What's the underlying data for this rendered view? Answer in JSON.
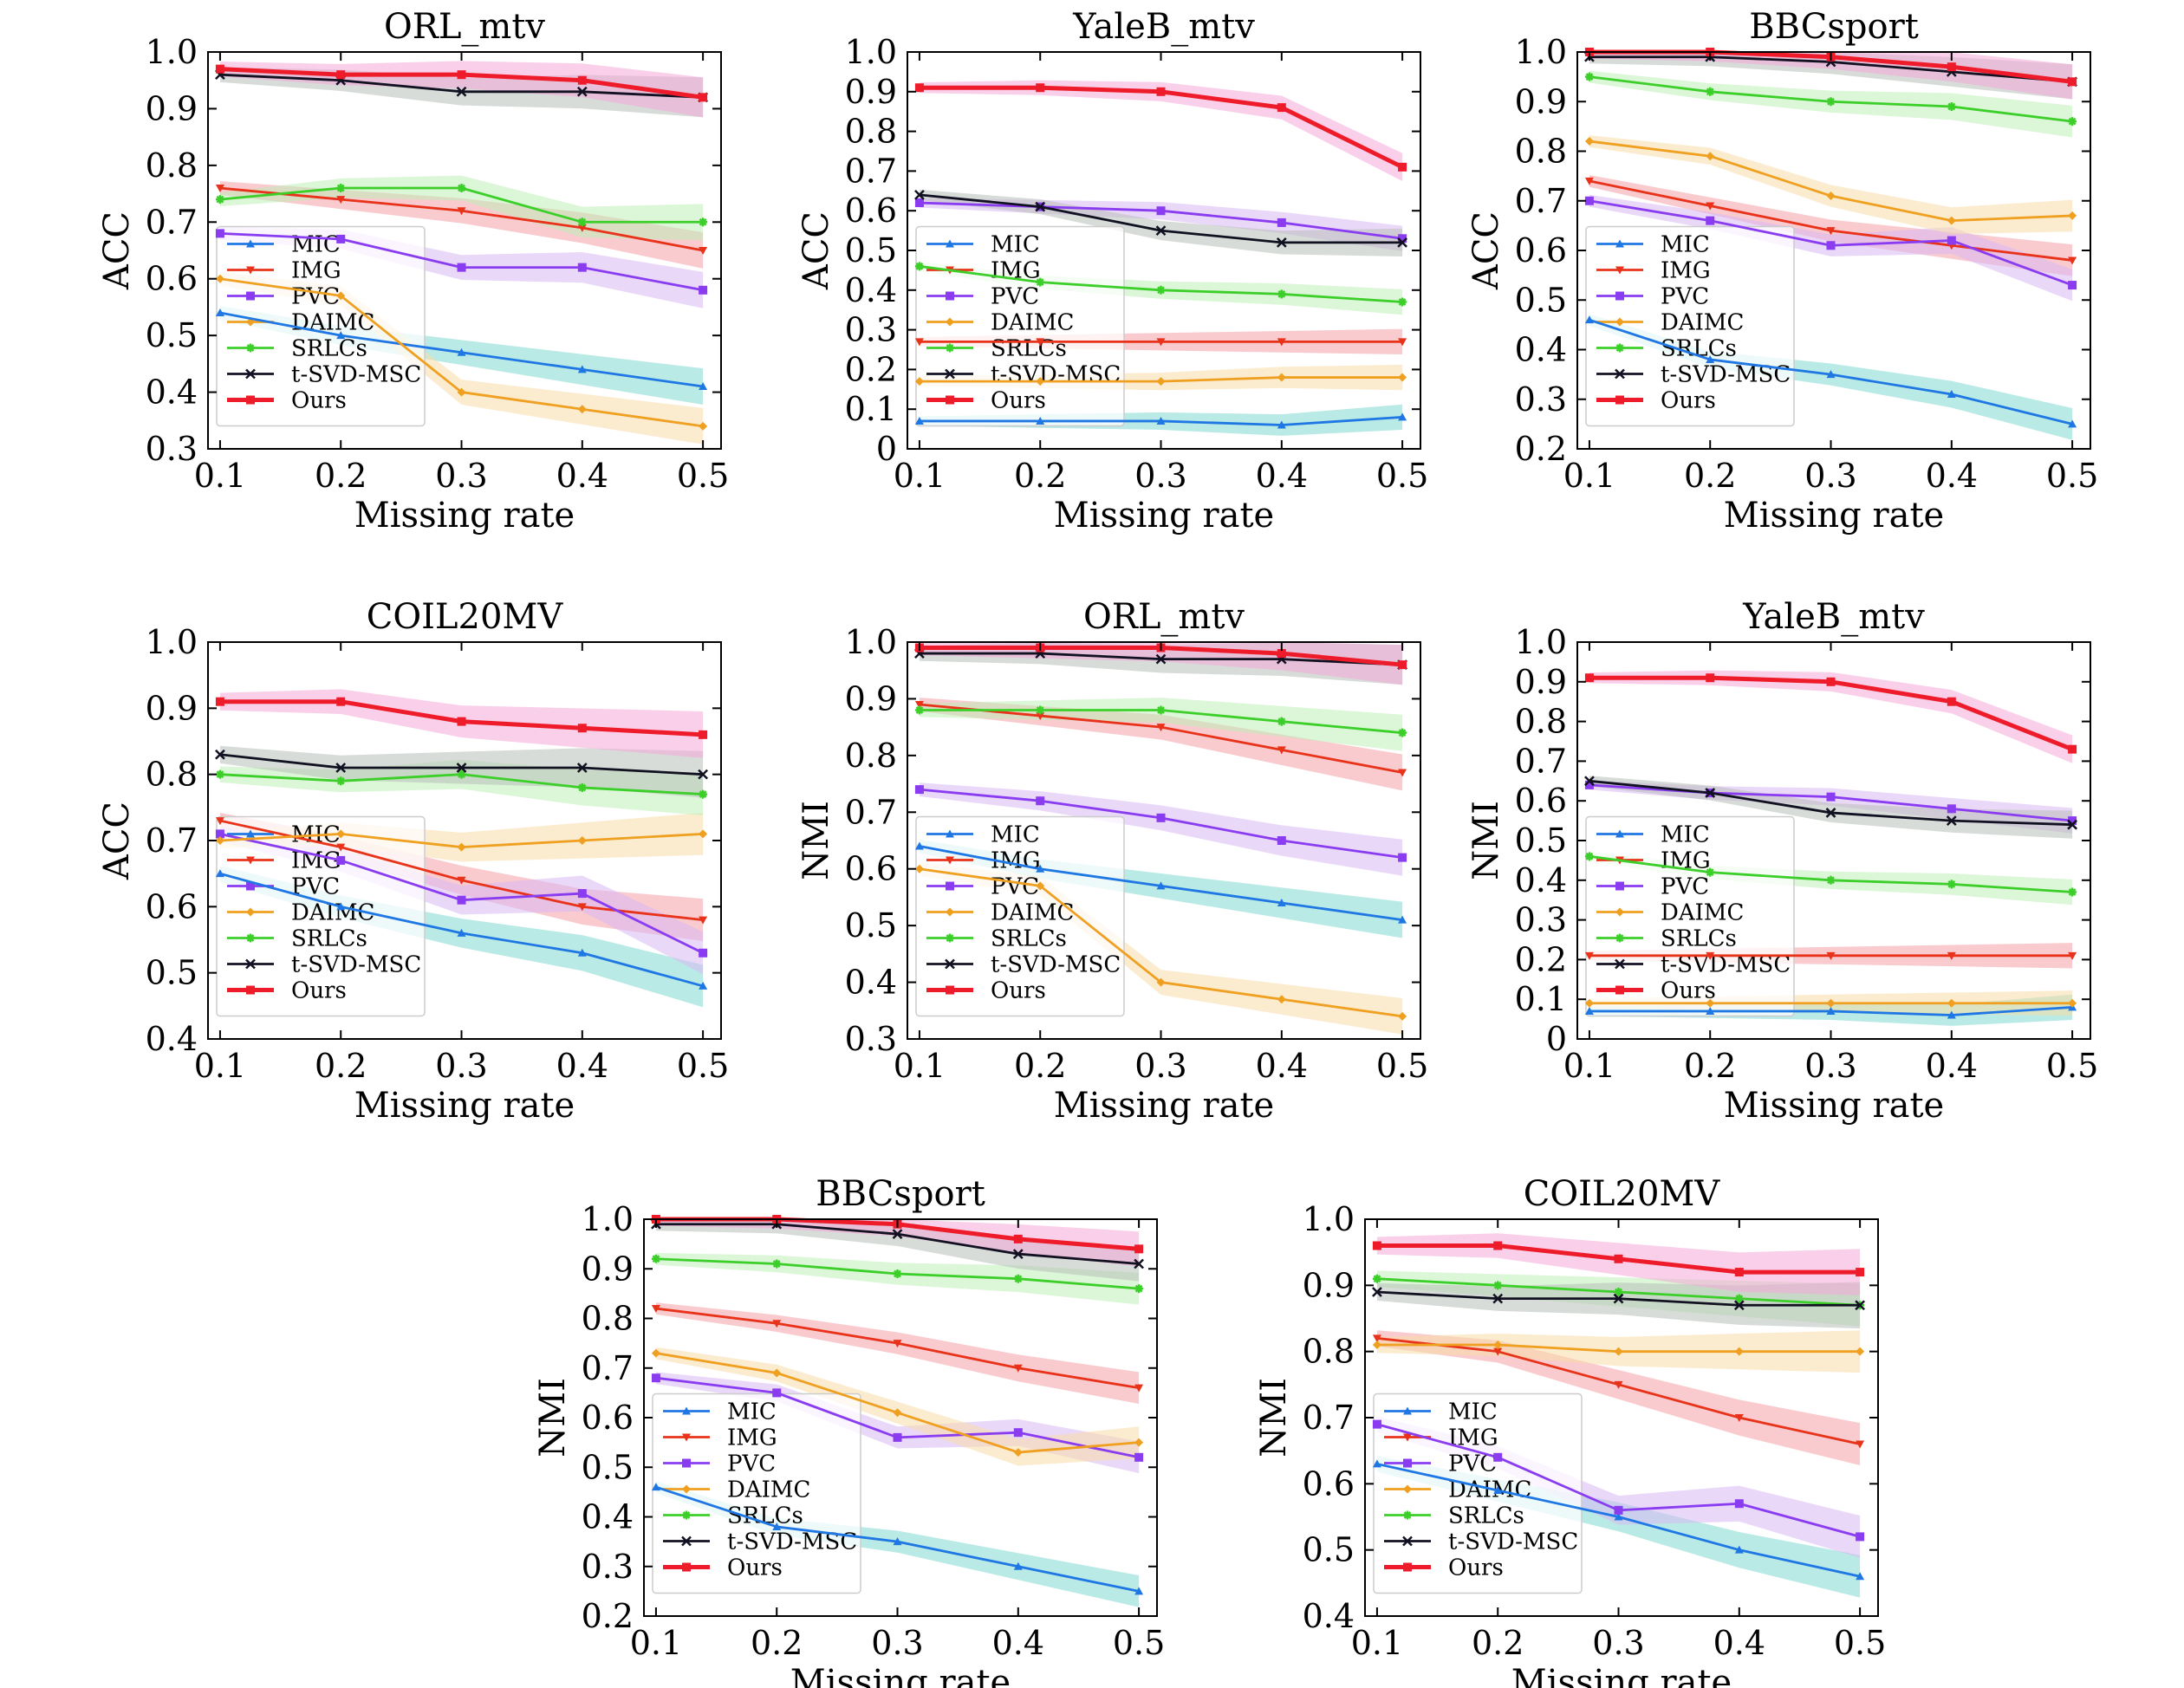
{
  "figure": {
    "legend_labels": [
      "MIC",
      "IMG",
      "PVC",
      "DAIMC",
      "SRLCs",
      "t-SVD-MSC",
      "Ours"
    ],
    "colors": {
      "MIC": "#1f77e4",
      "IMG": "#e8321a",
      "PVC": "#8a3cf0",
      "DAIMC": "#f0a020",
      "SRLCs": "#3ccf2a",
      "t-SVD-MSC": "#111122",
      "Ours": "#ee1c2a"
    },
    "markers": {
      "MIC": "triangle-up",
      "IMG": "triangle-down",
      "PVC": "square",
      "DAIMC": "diamond",
      "SRLCs": "star",
      "t-SVD-MSC": "x",
      "Ours": "square"
    },
    "band_colors": {
      "MIC": "#80d8d0",
      "IMG": "#f4a0a8",
      "PVC": "#d8b8f4",
      "DAIMC": "#f8dca8",
      "SRLCs": "#bfeeb8",
      "t-SVD-MSC": "#b8c0b8",
      "Ours": "#f4a8d8"
    }
  },
  "chart_data": [
    {
      "type": "line",
      "title": "ORL_mtv",
      "xlabel": "Missing rate",
      "ylabel": "ACC",
      "x": [
        0.1,
        0.2,
        0.3,
        0.4,
        0.5
      ],
      "xticks": [
        "0.1",
        "0.2",
        "0.3",
        "0.4",
        "0.5"
      ],
      "ylim": [
        0.3,
        1.0
      ],
      "yticks": [
        "0.3",
        "0.4",
        "0.5",
        "0.6",
        "0.7",
        "0.8",
        "0.9",
        "1.0"
      ],
      "series": [
        {
          "name": "MIC",
          "values": [
            0.54,
            0.5,
            0.47,
            0.44,
            0.41
          ]
        },
        {
          "name": "IMG",
          "values": [
            0.76,
            0.74,
            0.72,
            0.69,
            0.65
          ]
        },
        {
          "name": "PVC",
          "values": [
            0.68,
            0.67,
            0.62,
            0.62,
            0.58
          ]
        },
        {
          "name": "DAIMC",
          "values": [
            0.6,
            0.57,
            0.4,
            0.37,
            0.34
          ]
        },
        {
          "name": "SRLCs",
          "values": [
            0.74,
            0.76,
            0.76,
            0.7,
            0.7
          ]
        },
        {
          "name": "t-SVD-MSC",
          "values": [
            0.96,
            0.95,
            0.93,
            0.93,
            0.92
          ]
        },
        {
          "name": "Ours",
          "values": [
            0.97,
            0.96,
            0.96,
            0.95,
            0.92
          ]
        }
      ]
    },
    {
      "type": "line",
      "title": "YaleB_mtv",
      "xlabel": "Missing rate",
      "ylabel": "ACC",
      "x": [
        0.1,
        0.2,
        0.3,
        0.4,
        0.5
      ],
      "xticks": [
        "0.1",
        "0.2",
        "0.3",
        "0.4",
        "0.5"
      ],
      "ylim": [
        0.0,
        1.0
      ],
      "yticks": [
        "0",
        "0.1",
        "0.2",
        "0.3",
        "0.4",
        "0.5",
        "0.6",
        "0.7",
        "0.8",
        "0.9",
        "1.0"
      ],
      "series": [
        {
          "name": "MIC",
          "values": [
            0.07,
            0.07,
            0.07,
            0.06,
            0.08
          ]
        },
        {
          "name": "IMG",
          "values": [
            0.27,
            0.27,
            0.27,
            0.27,
            0.27
          ]
        },
        {
          "name": "PVC",
          "values": [
            0.62,
            0.61,
            0.6,
            0.57,
            0.53
          ]
        },
        {
          "name": "DAIMC",
          "values": [
            0.17,
            0.17,
            0.17,
            0.18,
            0.18
          ]
        },
        {
          "name": "SRLCs",
          "values": [
            0.46,
            0.42,
            0.4,
            0.39,
            0.37
          ]
        },
        {
          "name": "t-SVD-MSC",
          "values": [
            0.64,
            0.61,
            0.55,
            0.52,
            0.52
          ]
        },
        {
          "name": "Ours",
          "values": [
            0.91,
            0.91,
            0.9,
            0.86,
            0.71
          ]
        }
      ]
    },
    {
      "type": "line",
      "title": "BBCsport",
      "xlabel": "Missing rate",
      "ylabel": "ACC",
      "x": [
        0.1,
        0.2,
        0.3,
        0.4,
        0.5
      ],
      "xticks": [
        "0.1",
        "0.2",
        "0.3",
        "0.4",
        "0.5"
      ],
      "ylim": [
        0.2,
        1.0
      ],
      "yticks": [
        "0.2",
        "0.3",
        "0.4",
        "0.5",
        "0.6",
        "0.7",
        "0.8",
        "0.9",
        "1.0"
      ],
      "series": [
        {
          "name": "MIC",
          "values": [
            0.46,
            0.38,
            0.35,
            0.31,
            0.25
          ]
        },
        {
          "name": "IMG",
          "values": [
            0.74,
            0.69,
            0.64,
            0.61,
            0.58
          ]
        },
        {
          "name": "PVC",
          "values": [
            0.7,
            0.66,
            0.61,
            0.62,
            0.53
          ]
        },
        {
          "name": "DAIMC",
          "values": [
            0.82,
            0.79,
            0.71,
            0.66,
            0.67
          ]
        },
        {
          "name": "SRLCs",
          "values": [
            0.95,
            0.92,
            0.9,
            0.89,
            0.86
          ]
        },
        {
          "name": "t-SVD-MSC",
          "values": [
            0.99,
            0.99,
            0.98,
            0.96,
            0.94
          ]
        },
        {
          "name": "Ours",
          "values": [
            1.0,
            1.0,
            0.99,
            0.97,
            0.94
          ]
        }
      ]
    },
    {
      "type": "line",
      "title": "COIL20MV",
      "xlabel": "Missing rate",
      "ylabel": "ACC",
      "x": [
        0.1,
        0.2,
        0.3,
        0.4,
        0.5
      ],
      "xticks": [
        "0.1",
        "0.2",
        "0.3",
        "0.4",
        "0.5"
      ],
      "ylim": [
        0.4,
        1.0
      ],
      "yticks": [
        "0.4",
        "0.5",
        "0.6",
        "0.7",
        "0.8",
        "0.9",
        "1.0"
      ],
      "series": [
        {
          "name": "MIC",
          "values": [
            0.65,
            0.6,
            0.56,
            0.53,
            0.48
          ]
        },
        {
          "name": "IMG",
          "values": [
            0.73,
            0.69,
            0.64,
            0.6,
            0.58
          ]
        },
        {
          "name": "PVC",
          "values": [
            0.71,
            0.67,
            0.61,
            0.62,
            0.53
          ]
        },
        {
          "name": "DAIMC",
          "values": [
            0.7,
            0.71,
            0.69,
            0.7,
            0.71
          ]
        },
        {
          "name": "SRLCs",
          "values": [
            0.8,
            0.79,
            0.8,
            0.78,
            0.77
          ]
        },
        {
          "name": "t-SVD-MSC",
          "values": [
            0.83,
            0.81,
            0.81,
            0.81,
            0.8
          ]
        },
        {
          "name": "Ours",
          "values": [
            0.91,
            0.91,
            0.88,
            0.87,
            0.86
          ]
        }
      ]
    },
    {
      "type": "line",
      "title": "ORL_mtv",
      "xlabel": "Missing rate",
      "ylabel": "NMI",
      "x": [
        0.1,
        0.2,
        0.3,
        0.4,
        0.5
      ],
      "xticks": [
        "0.1",
        "0.2",
        "0.3",
        "0.4",
        "0.5"
      ],
      "ylim": [
        0.3,
        1.0
      ],
      "yticks": [
        "0.3",
        "0.4",
        "0.5",
        "0.6",
        "0.7",
        "0.8",
        "0.9",
        "1.0"
      ],
      "series": [
        {
          "name": "MIC",
          "values": [
            0.64,
            0.6,
            0.57,
            0.54,
            0.51
          ]
        },
        {
          "name": "IMG",
          "values": [
            0.89,
            0.87,
            0.85,
            0.81,
            0.77
          ]
        },
        {
          "name": "PVC",
          "values": [
            0.74,
            0.72,
            0.69,
            0.65,
            0.62
          ]
        },
        {
          "name": "DAIMC",
          "values": [
            0.6,
            0.57,
            0.4,
            0.37,
            0.34
          ]
        },
        {
          "name": "SRLCs",
          "values": [
            0.88,
            0.88,
            0.88,
            0.86,
            0.84
          ]
        },
        {
          "name": "t-SVD-MSC",
          "values": [
            0.98,
            0.98,
            0.97,
            0.97,
            0.96
          ]
        },
        {
          "name": "Ours",
          "values": [
            0.99,
            0.99,
            0.99,
            0.98,
            0.96
          ]
        }
      ]
    },
    {
      "type": "line",
      "title": "YaleB_mtv",
      "xlabel": "Missing rate",
      "ylabel": "NMI",
      "x": [
        0.1,
        0.2,
        0.3,
        0.4,
        0.5
      ],
      "xticks": [
        "0.1",
        "0.2",
        "0.3",
        "0.4",
        "0.5"
      ],
      "ylim": [
        0.0,
        1.0
      ],
      "yticks": [
        "0",
        "0.1",
        "0.2",
        "0.3",
        "0.4",
        "0.5",
        "0.6",
        "0.7",
        "0.8",
        "0.9",
        "1.0"
      ],
      "series": [
        {
          "name": "MIC",
          "values": [
            0.07,
            0.07,
            0.07,
            0.06,
            0.08
          ]
        },
        {
          "name": "IMG",
          "values": [
            0.21,
            0.21,
            0.21,
            0.21,
            0.21
          ]
        },
        {
          "name": "PVC",
          "values": [
            0.64,
            0.62,
            0.61,
            0.58,
            0.55
          ]
        },
        {
          "name": "DAIMC",
          "values": [
            0.09,
            0.09,
            0.09,
            0.09,
            0.09
          ]
        },
        {
          "name": "SRLCs",
          "values": [
            0.46,
            0.42,
            0.4,
            0.39,
            0.37
          ]
        },
        {
          "name": "t-SVD-MSC",
          "values": [
            0.65,
            0.62,
            0.57,
            0.55,
            0.54
          ]
        },
        {
          "name": "Ours",
          "values": [
            0.91,
            0.91,
            0.9,
            0.85,
            0.73
          ]
        }
      ]
    },
    {
      "type": "line",
      "title": "BBCsport",
      "xlabel": "Missing rate",
      "ylabel": "NMI",
      "x": [
        0.1,
        0.2,
        0.3,
        0.4,
        0.5
      ],
      "xticks": [
        "0.1",
        "0.2",
        "0.3",
        "0.4",
        "0.5"
      ],
      "ylim": [
        0.2,
        1.0
      ],
      "yticks": [
        "0.2",
        "0.3",
        "0.4",
        "0.5",
        "0.6",
        "0.7",
        "0.8",
        "0.9",
        "1.0"
      ],
      "series": [
        {
          "name": "MIC",
          "values": [
            0.46,
            0.38,
            0.35,
            0.3,
            0.25
          ]
        },
        {
          "name": "IMG",
          "values": [
            0.82,
            0.79,
            0.75,
            0.7,
            0.66
          ]
        },
        {
          "name": "PVC",
          "values": [
            0.68,
            0.65,
            0.56,
            0.57,
            0.52
          ]
        },
        {
          "name": "DAIMC",
          "values": [
            0.73,
            0.69,
            0.61,
            0.53,
            0.55
          ]
        },
        {
          "name": "SRLCs",
          "values": [
            0.92,
            0.91,
            0.89,
            0.88,
            0.86
          ]
        },
        {
          "name": "t-SVD-MSC",
          "values": [
            0.99,
            0.99,
            0.97,
            0.93,
            0.91
          ]
        },
        {
          "name": "Ours",
          "values": [
            1.0,
            1.0,
            0.99,
            0.96,
            0.94
          ]
        }
      ]
    },
    {
      "type": "line",
      "title": "COIL20MV",
      "xlabel": "Missing rate",
      "ylabel": "NMI",
      "x": [
        0.1,
        0.2,
        0.3,
        0.4,
        0.5
      ],
      "xticks": [
        "0.1",
        "0.2",
        "0.3",
        "0.4",
        "0.5"
      ],
      "ylim": [
        0.4,
        1.0
      ],
      "yticks": [
        "0.4",
        "0.5",
        "0.6",
        "0.7",
        "0.8",
        "0.9",
        "1.0"
      ],
      "series": [
        {
          "name": "MIC",
          "values": [
            0.63,
            0.59,
            0.55,
            0.5,
            0.46
          ]
        },
        {
          "name": "IMG",
          "values": [
            0.82,
            0.8,
            0.75,
            0.7,
            0.66
          ]
        },
        {
          "name": "PVC",
          "values": [
            0.69,
            0.64,
            0.56,
            0.57,
            0.52
          ]
        },
        {
          "name": "DAIMC",
          "values": [
            0.81,
            0.81,
            0.8,
            0.8,
            0.8
          ]
        },
        {
          "name": "SRLCs",
          "values": [
            0.91,
            0.9,
            0.89,
            0.88,
            0.87
          ]
        },
        {
          "name": "t-SVD-MSC",
          "values": [
            0.89,
            0.88,
            0.88,
            0.87,
            0.87
          ]
        },
        {
          "name": "Ours",
          "values": [
            0.96,
            0.96,
            0.94,
            0.92,
            0.92
          ]
        }
      ]
    }
  ]
}
